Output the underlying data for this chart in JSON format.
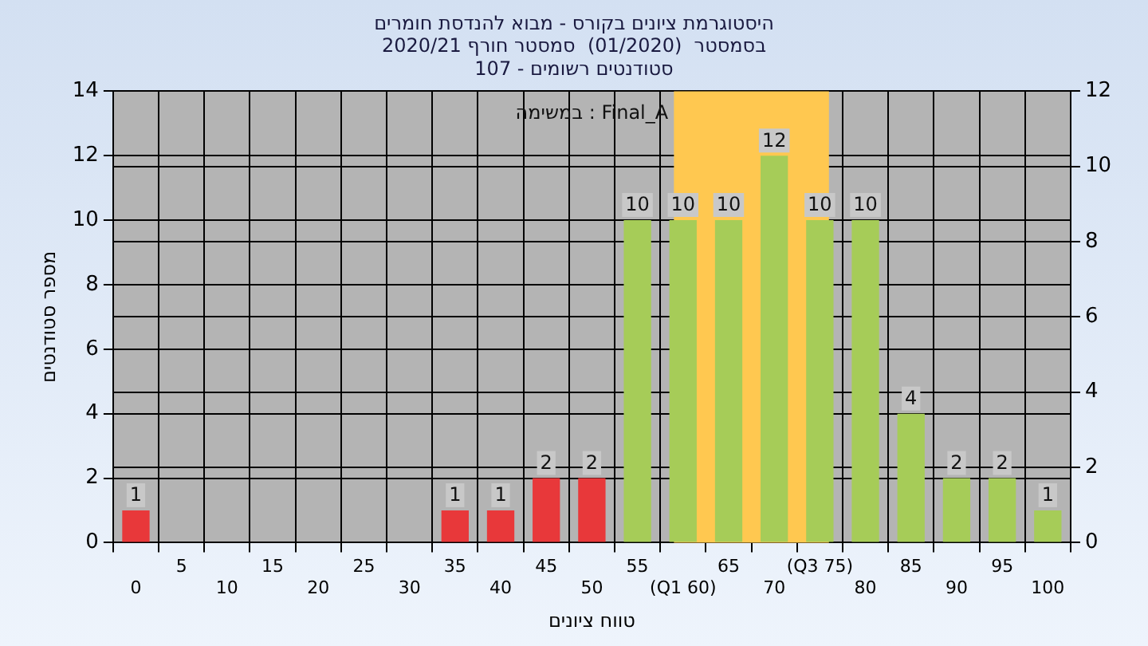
{
  "chart_data": {
    "type": "bar",
    "title": "היסטוגרמת ציונים בקורס - מבוא להנדסת חומרים",
    "subtitle": "בסמסטר  (01/2020)  סמסטר חורף 2020/21\nסטודנטים רשומים - 107",
    "xlabel": "טווח ציונים",
    "ylabel": "מספר סטודנטים",
    "annotations": [
      "במשימה : Final_A"
    ],
    "categories": [
      "0",
      "5",
      "10",
      "15",
      "20",
      "25",
      "30",
      "35",
      "40",
      "45",
      "50",
      "55",
      "(Q1 60)",
      "65",
      "70",
      "(Q3 75)",
      "80",
      "85",
      "90",
      "95",
      "100"
    ],
    "values": [
      1,
      0,
      0,
      0,
      0,
      0,
      0,
      1,
      1,
      2,
      2,
      10,
      10,
      10,
      12,
      10,
      10,
      4,
      2,
      2,
      1
    ],
    "value_labels": [
      "1",
      null,
      null,
      null,
      null,
      null,
      null,
      "1",
      "1",
      "2",
      "2",
      "10",
      "10",
      "10",
      "12",
      "10",
      "10",
      "4",
      "2",
      "2",
      "1"
    ],
    "colors": [
      "#e8383a",
      "#e8383a",
      "#e8383a",
      "#e8383a",
      "#e8383a",
      "#e8383a",
      "#e8383a",
      "#e8383a",
      "#e8383a",
      "#e8383a",
      "#e8383a",
      "#a6cc58",
      "#a6cc58",
      "#a6cc58",
      "#a6cc58",
      "#a6cc58",
      "#a6cc58",
      "#a6cc58",
      "#a6cc58",
      "#a6cc58",
      "#a6cc58"
    ],
    "ylim": [
      0,
      14
    ],
    "yticks": [
      0,
      2,
      4,
      6,
      8,
      10,
      12,
      14
    ],
    "y2lim": [
      0,
      12
    ],
    "y2ticks": [
      0,
      2,
      4,
      6,
      8,
      10,
      12
    ],
    "bands": [
      {
        "axis": "x",
        "from": "(Q1 60)",
        "to": "(Q3 75)",
        "color": "#ffc850"
      }
    ],
    "grid": true,
    "legend": false
  }
}
